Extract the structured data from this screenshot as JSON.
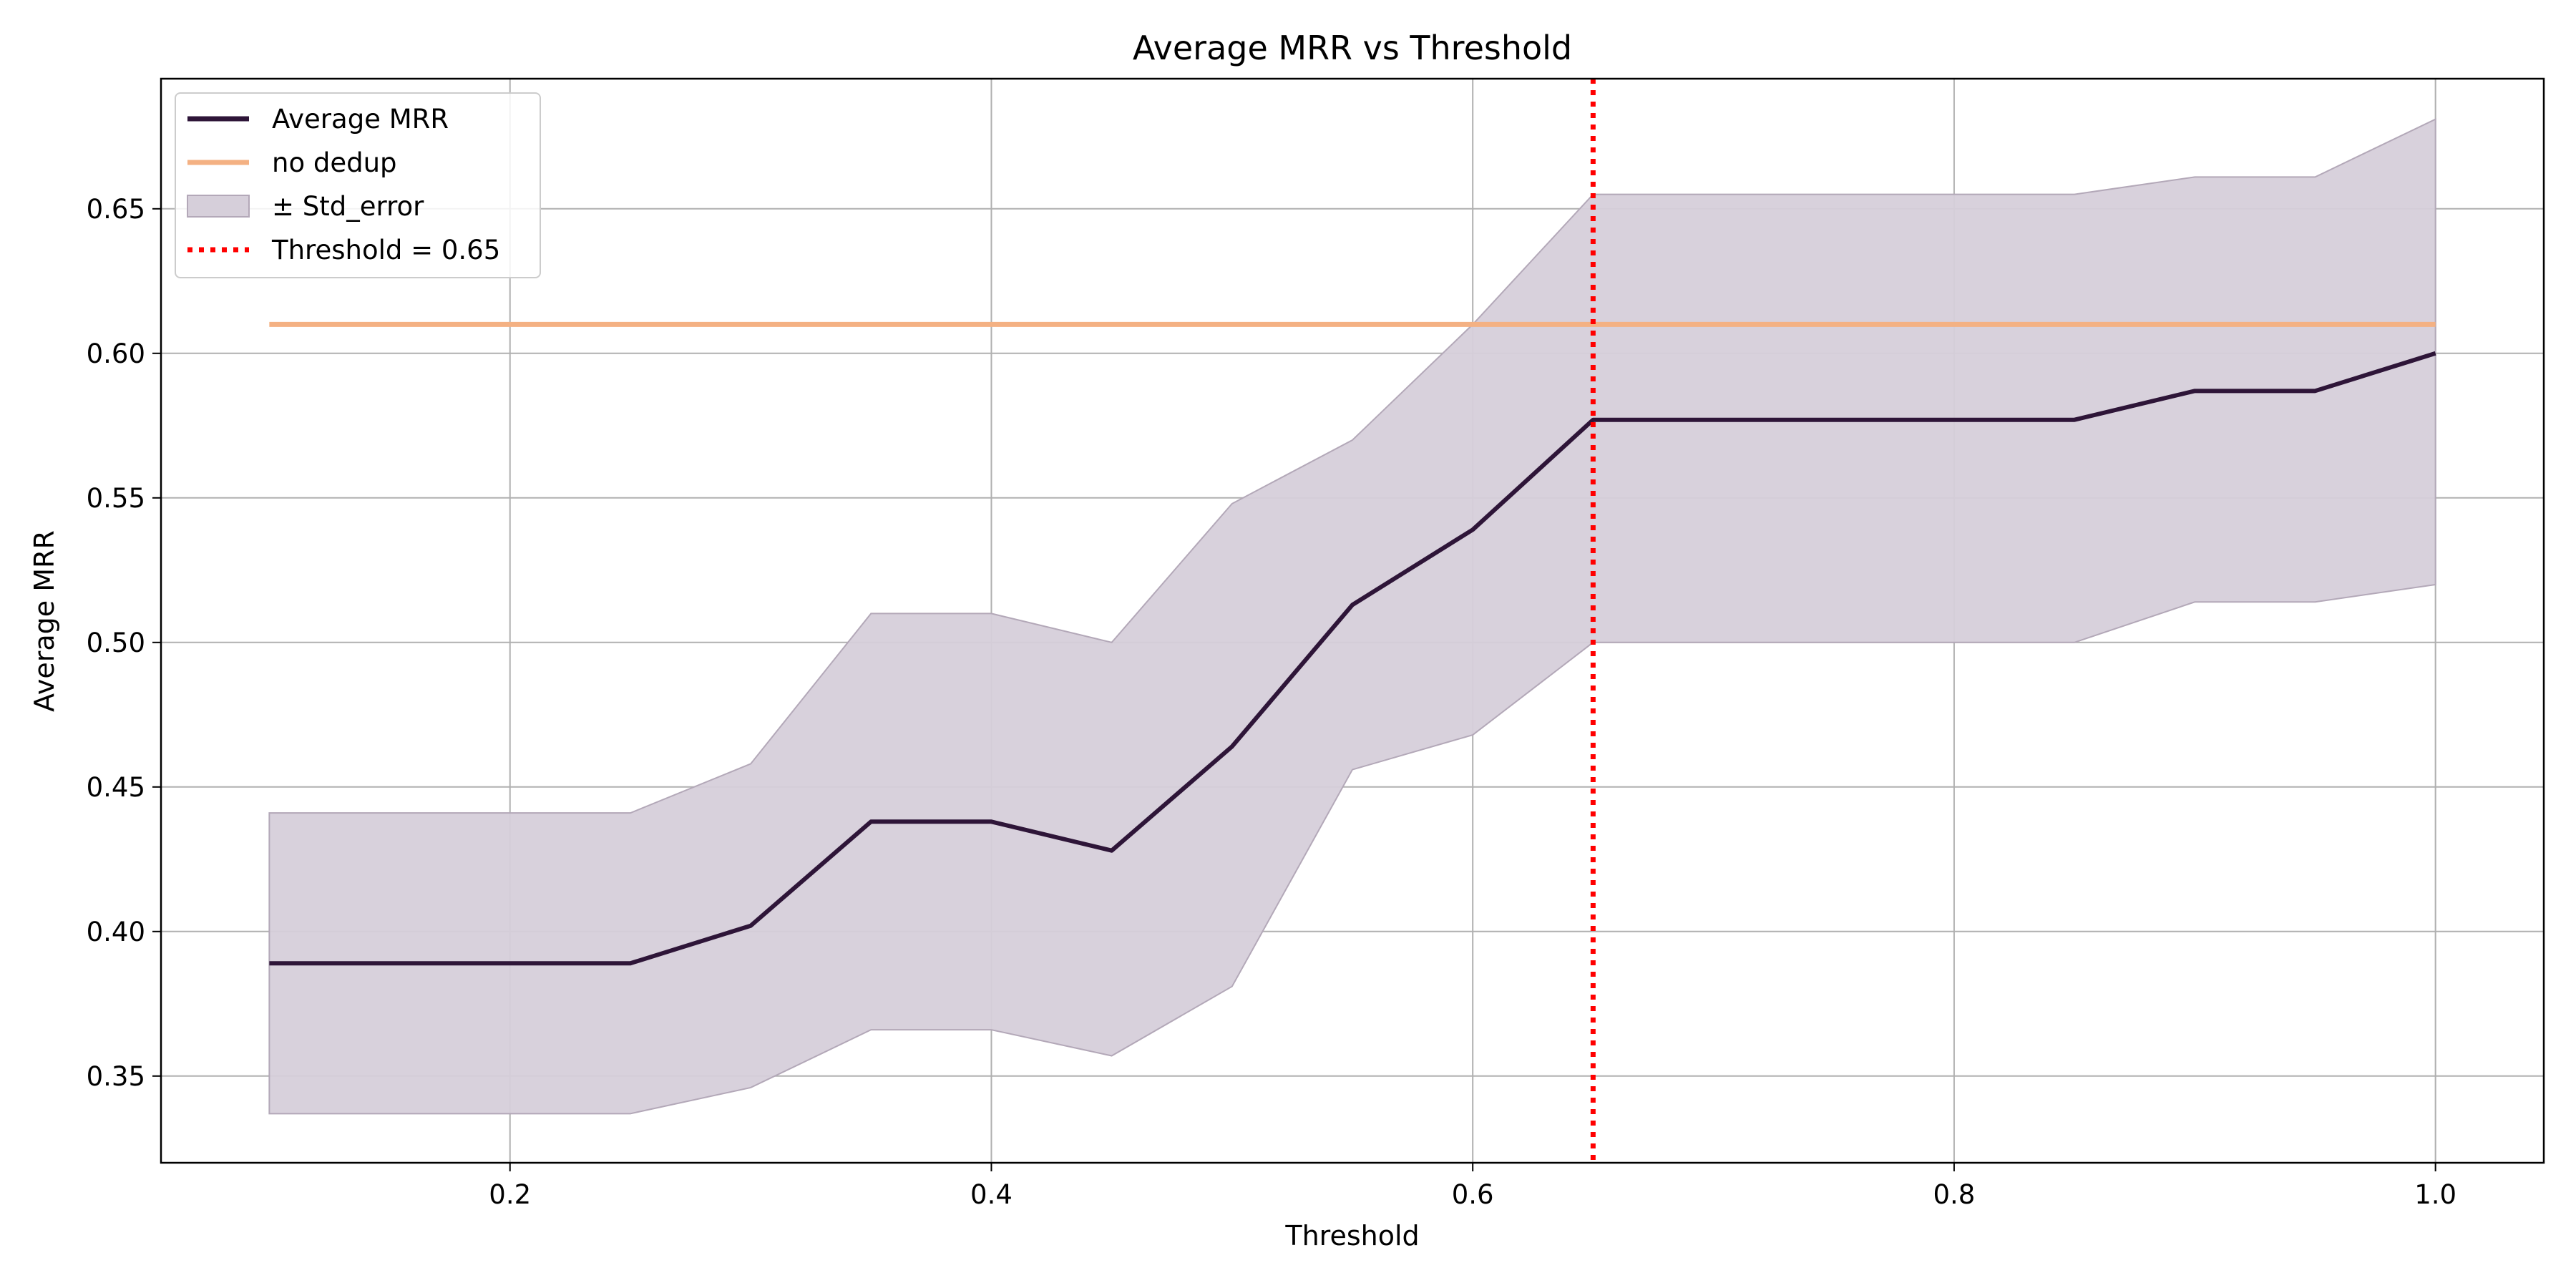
{
  "chart_data": {
    "type": "line",
    "title": "Average MRR vs Threshold",
    "xlabel": "Threshold",
    "ylabel": "Average MRR",
    "xlim": [
      0.055,
      1.045
    ],
    "ylim": [
      0.32,
      0.695
    ],
    "xticks": [
      0.2,
      0.4,
      0.6,
      0.8,
      1.0
    ],
    "xtick_labels": [
      "0.2",
      "0.4",
      "0.6",
      "0.8",
      "1.0"
    ],
    "yticks": [
      0.35,
      0.4,
      0.45,
      0.5,
      0.55,
      0.6,
      0.65
    ],
    "ytick_labels": [
      "0.35",
      "0.40",
      "0.45",
      "0.50",
      "0.55",
      "0.60",
      "0.65"
    ],
    "grid": true,
    "legend_position": "top-left",
    "x": [
      0.1,
      0.15,
      0.2,
      0.25,
      0.3,
      0.35,
      0.4,
      0.45,
      0.5,
      0.55,
      0.6,
      0.65,
      0.7,
      0.75,
      0.8,
      0.85,
      0.9,
      0.95,
      1.0
    ],
    "series": [
      {
        "name": "Average MRR",
        "color": "#2e1538",
        "values": [
          0.389,
          0.389,
          0.389,
          0.389,
          0.402,
          0.438,
          0.438,
          0.428,
          0.464,
          0.513,
          0.539,
          0.577,
          0.577,
          0.577,
          0.577,
          0.577,
          0.587,
          0.587,
          0.6
        ]
      }
    ],
    "band": {
      "name": "± Std_error",
      "color": "#d6cfda",
      "edge_color": "#b3a8b8",
      "upper": [
        0.441,
        0.441,
        0.441,
        0.441,
        0.458,
        0.51,
        0.51,
        0.5,
        0.548,
        0.57,
        0.61,
        0.655,
        0.655,
        0.655,
        0.655,
        0.655,
        0.661,
        0.661,
        0.681
      ],
      "lower": [
        0.337,
        0.337,
        0.337,
        0.337,
        0.346,
        0.366,
        0.366,
        0.357,
        0.381,
        0.456,
        0.468,
        0.5,
        0.5,
        0.5,
        0.5,
        0.5,
        0.514,
        0.514,
        0.52
      ]
    },
    "reference_lines": [
      {
        "name": "no dedup",
        "orientation": "horizontal",
        "value": 0.61,
        "x_range": [
          0.1,
          1.0
        ],
        "color": "#f4b183",
        "style": "solid"
      },
      {
        "name": "Threshold = 0.65",
        "orientation": "vertical",
        "value": 0.65,
        "color": "#ff0000",
        "style": "dotted"
      }
    ],
    "legend": [
      {
        "label": "Average MRR",
        "kind": "line",
        "color": "#2e1538"
      },
      {
        "label": "no dedup",
        "kind": "line",
        "color": "#f4b183"
      },
      {
        "label": "± Std_error",
        "kind": "patch",
        "color": "#d6cfda"
      },
      {
        "label": "Threshold = 0.65",
        "kind": "dotted",
        "color": "#ff0000"
      }
    ]
  }
}
